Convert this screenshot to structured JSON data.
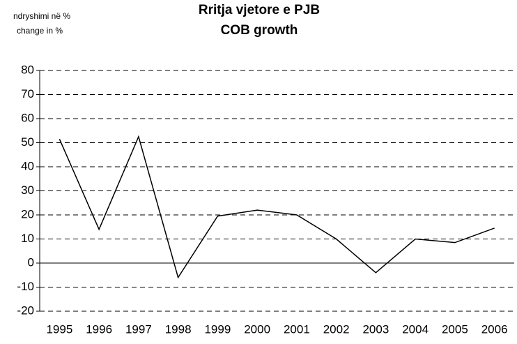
{
  "chart_data": {
    "type": "line",
    "title": [
      "Rritja vjetore e PJB",
      "COB growth"
    ],
    "y_label": [
      "ndryshimi në %",
      "change in  %"
    ],
    "categories": [
      "1995",
      "1996",
      "1997",
      "1998",
      "1999",
      "2000",
      "2001",
      "2002",
      "2003",
      "2004",
      "2005",
      "2006"
    ],
    "series": [
      {
        "color": "#000000",
        "values": [
          51.5,
          14,
          52.5,
          -6,
          19.5,
          22,
          20,
          10,
          -4,
          10,
          8.5,
          14.5
        ]
      }
    ],
    "ylim": [
      -20,
      80
    ],
    "yticks": [
      -20,
      -10,
      0,
      10,
      20,
      30,
      40,
      50,
      60,
      70,
      80
    ],
    "grid": true
  }
}
